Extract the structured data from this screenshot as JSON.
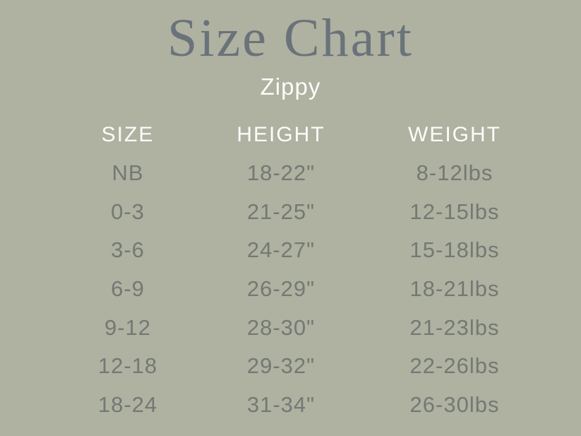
{
  "theme": {
    "background_color": "#afb1a1",
    "title_color": "#6a737a",
    "header_text_color": "#fcfcf9",
    "row_text_color": "#737973"
  },
  "header": {
    "title": "Size Chart",
    "subtitle": "Zippy"
  },
  "chart_data": {
    "type": "table",
    "title": "Size Chart",
    "subtitle": "Zippy",
    "columns": [
      "SIZE",
      "HEIGHT",
      "WEIGHT"
    ],
    "rows": [
      [
        "NB",
        "18-22\"",
        "8-12lbs"
      ],
      [
        "0-3",
        "21-25\"",
        "12-15lbs"
      ],
      [
        "3-6",
        "24-27\"",
        "15-18lbs"
      ],
      [
        "6-9",
        "26-29\"",
        "18-21lbs"
      ],
      [
        "9-12",
        "28-30\"",
        "21-23lbs"
      ],
      [
        "12-18",
        "29-32\"",
        "22-26lbs"
      ],
      [
        "18-24",
        "31-34\"",
        "26-30lbs"
      ]
    ],
    "layout": {
      "grid": false,
      "column_alignment": "center",
      "header_style": "white-uppercase",
      "body_style": "gray"
    }
  }
}
